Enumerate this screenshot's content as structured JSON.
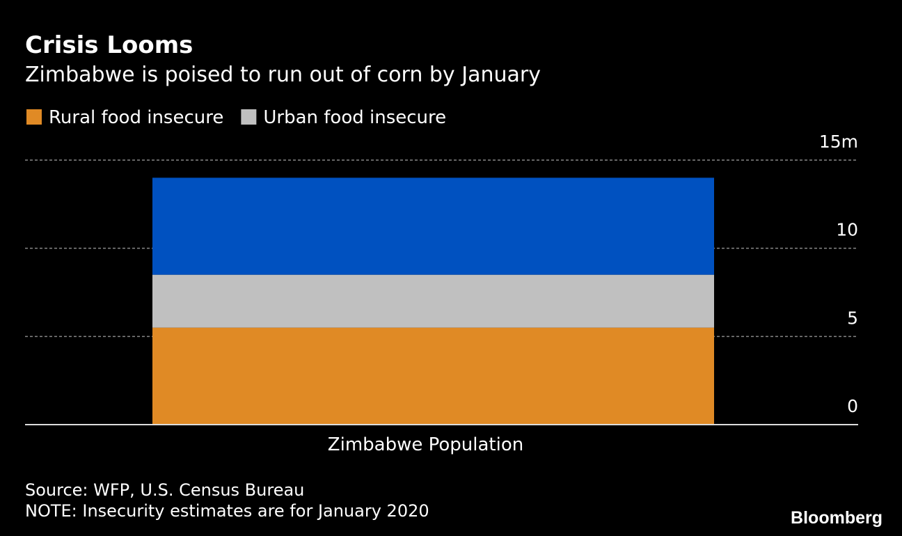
{
  "chart_data": {
    "type": "stacked_bar",
    "title": "Crisis Looms",
    "subtitle": "Zimbabwe is poised to run out of corn by January",
    "categories": [
      "Zimbabwe Population"
    ],
    "series": [
      {
        "name": "Rural food insecure",
        "color": "#e08a25",
        "values": [
          5.5
        ]
      },
      {
        "name": "Urban food insecure",
        "color": "#c0c0c0",
        "values": [
          3.0
        ]
      },
      {
        "color": "#0051c0",
        "values": [
          5.5
        ]
      }
    ],
    "ylim": [
      0,
      15
    ],
    "yticks": [
      0,
      5,
      10,
      {
        "value": 15,
        "label": "15m"
      }
    ],
    "grid": true,
    "source": "Source: WFP, U.S. Census Bureau",
    "note": "NOTE: Insecurity estimates are for January 2020",
    "brand": "Bloomberg"
  }
}
